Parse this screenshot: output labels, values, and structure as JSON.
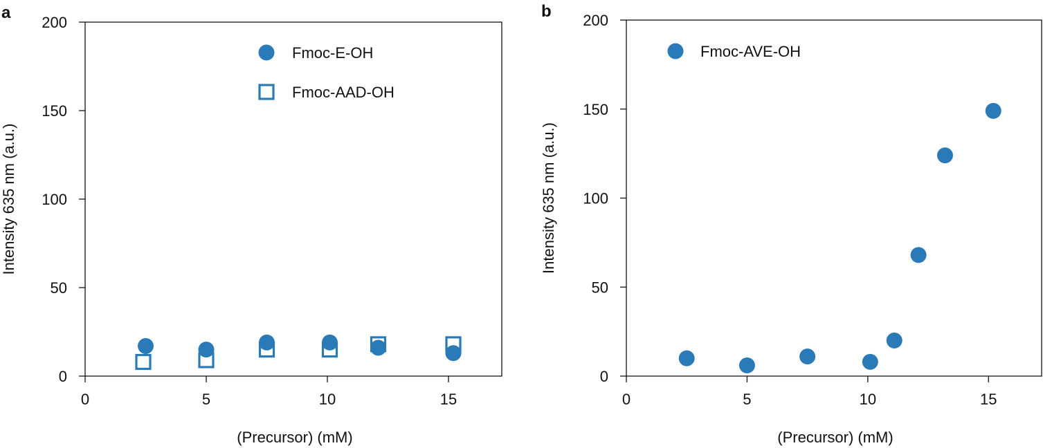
{
  "colors": {
    "series": "#2a7ab8",
    "axis": "#111111"
  },
  "chart_data": [
    {
      "panel_label": "a",
      "type": "scatter",
      "xlabel": "(Precursor) (mM)",
      "ylabel": "Intensity 635 nm (a.u.)",
      "xlim": [
        0,
        17.2
      ],
      "ylim": [
        0,
        200
      ],
      "xticks": [
        0,
        5,
        10,
        15
      ],
      "yticks": [
        0,
        50,
        100,
        150,
        200
      ],
      "grid": false,
      "legend_position": "top-center",
      "series": [
        {
          "name": "Fmoc-E-OH",
          "marker": "filled-circle",
          "points": [
            {
              "x": 2.5,
              "y": 17
            },
            {
              "x": 5.0,
              "y": 15
            },
            {
              "x": 7.5,
              "y": 19
            },
            {
              "x": 10.1,
              "y": 19
            },
            {
              "x": 12.1,
              "y": 16
            },
            {
              "x": 15.2,
              "y": 13
            }
          ]
        },
        {
          "name": "Fmoc-AAD-OH",
          "marker": "open-square",
          "points": [
            {
              "x": 2.4,
              "y": 8
            },
            {
              "x": 5.0,
              "y": 9
            },
            {
              "x": 7.5,
              "y": 15
            },
            {
              "x": 10.1,
              "y": 15
            },
            {
              "x": 12.1,
              "y": 18
            },
            {
              "x": 15.2,
              "y": 18
            }
          ]
        }
      ]
    },
    {
      "panel_label": "b",
      "type": "scatter",
      "xlabel": "(Precursor) (mM)",
      "ylabel": "Intensity 635 nm (a.u.)",
      "xlim": [
        0,
        17.2
      ],
      "ylim": [
        0,
        200
      ],
      "xticks": [
        0,
        5,
        10,
        15
      ],
      "yticks": [
        0,
        50,
        100,
        150,
        200
      ],
      "grid": false,
      "legend_position": "top-left",
      "series": [
        {
          "name": "Fmoc-AVE-OH",
          "marker": "filled-circle",
          "points": [
            {
              "x": 2.5,
              "y": 10
            },
            {
              "x": 5.0,
              "y": 6
            },
            {
              "x": 7.5,
              "y": 11
            },
            {
              "x": 10.1,
              "y": 8
            },
            {
              "x": 11.1,
              "y": 20
            },
            {
              "x": 12.1,
              "y": 68
            },
            {
              "x": 13.2,
              "y": 124
            },
            {
              "x": 15.2,
              "y": 149
            }
          ]
        }
      ]
    }
  ]
}
